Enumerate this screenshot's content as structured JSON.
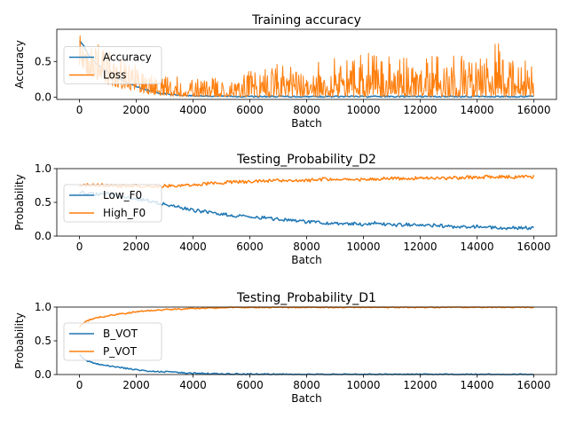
{
  "chart_data": [
    {
      "type": "line",
      "title": "Training accuracy",
      "xlabel": "Batch",
      "ylabel": "Accuracy",
      "xlim": [
        -800,
        16800
      ],
      "ylim": [
        -0.03,
        0.95
      ],
      "xticks": [
        0,
        2000,
        4000,
        6000,
        8000,
        10000,
        12000,
        14000,
        16000
      ],
      "yticks": [
        0.0,
        0.5
      ],
      "ytick_labels": [
        "0.0",
        "0.5"
      ],
      "legend": {
        "placement": "center-left",
        "entries": [
          "Accuracy",
          "Loss"
        ]
      },
      "series": [
        {
          "name": "Accuracy",
          "color": "#1f77b4",
          "x": [
            0,
            100,
            200,
            300,
            500,
            800,
            1200,
            1600,
            2000,
            2400,
            2800,
            3200,
            4000,
            6000,
            8000,
            10000,
            12000,
            14000,
            16000
          ],
          "y": [
            0.8,
            0.75,
            0.68,
            0.6,
            0.5,
            0.4,
            0.3,
            0.22,
            0.15,
            0.1,
            0.06,
            0.04,
            0.02,
            0.01,
            0.01,
            0.01,
            0.01,
            0.01,
            0.01
          ]
        },
        {
          "name": "Loss",
          "color": "#ff7f0e",
          "note_x_range": [
            0,
            16000
          ],
          "envelope": {
            "x": [
              0,
              200,
              600,
              1000,
              1500,
              2000,
              2500,
              3000,
              3500,
              4000,
              5000,
              5500,
              6000,
              7000,
              8000,
              9000,
              10000,
              10500,
              11000,
              12000,
              12500,
              13000,
              13500,
              14000,
              14700,
              15000,
              15500,
              16000
            ],
            "high": [
              0.9,
              0.85,
              0.75,
              0.65,
              0.55,
              0.45,
              0.35,
              0.3,
              0.3,
              0.25,
              0.28,
              0.38,
              0.45,
              0.48,
              0.5,
              0.55,
              0.6,
              0.75,
              0.6,
              0.55,
              0.6,
              0.55,
              0.65,
              0.6,
              0.8,
              0.55,
              0.6,
              0.4
            ],
            "low": [
              0.45,
              0.35,
              0.25,
              0.18,
              0.12,
              0.08,
              0.04,
              0.02,
              0.01,
              0.01,
              0.01,
              0.01,
              0.01,
              0.01,
              0.01,
              0.01,
              0.01,
              0.01,
              0.01,
              0.01,
              0.01,
              0.01,
              0.01,
              0.01,
              0.01,
              0.01,
              0.01,
              0.01
            ]
          }
        }
      ]
    },
    {
      "type": "line",
      "title": "Testing_Probability_D2",
      "xlabel": "Batch",
      "ylabel": "Probability",
      "xlim": [
        -800,
        16800
      ],
      "ylim": [
        0.0,
        1.0
      ],
      "xticks": [
        0,
        2000,
        4000,
        6000,
        8000,
        10000,
        12000,
        14000,
        16000
      ],
      "yticks": [
        0.0,
        0.5,
        1.0
      ],
      "ytick_labels": [
        "0.0",
        "0.5",
        "1.0"
      ],
      "legend": {
        "placement": "center-left",
        "entries": [
          "Low_F0",
          "High_F0"
        ]
      },
      "series": [
        {
          "name": "Low_F0",
          "color": "#1f77b4",
          "x": [
            0,
            500,
            1000,
            1500,
            2000,
            2500,
            3000,
            3500,
            4000,
            4500,
            5000,
            5500,
            6000,
            6500,
            7000,
            7500,
            8000,
            8500,
            9000,
            9500,
            10000,
            10500,
            11000,
            11500,
            12000,
            12500,
            13000,
            13500,
            14000,
            14500,
            15000,
            15500,
            16000
          ],
          "y": [
            0.65,
            0.62,
            0.63,
            0.58,
            0.55,
            0.52,
            0.47,
            0.43,
            0.38,
            0.36,
            0.33,
            0.3,
            0.29,
            0.27,
            0.25,
            0.23,
            0.21,
            0.2,
            0.19,
            0.19,
            0.17,
            0.2,
            0.16,
            0.17,
            0.15,
            0.16,
            0.14,
            0.13,
            0.14,
            0.13,
            0.12,
            0.12,
            0.12
          ]
        },
        {
          "name": "High_F0",
          "color": "#ff7f0e",
          "x": [
            0,
            500,
            1000,
            1500,
            2000,
            2500,
            3000,
            3500,
            4000,
            4500,
            5000,
            5500,
            6000,
            6500,
            7000,
            7500,
            8000,
            8500,
            9000,
            9500,
            10000,
            10500,
            11000,
            11500,
            12000,
            12500,
            13000,
            13500,
            14000,
            14500,
            15000,
            15500,
            16000
          ],
          "y": [
            0.75,
            0.76,
            0.75,
            0.74,
            0.74,
            0.73,
            0.74,
            0.75,
            0.76,
            0.78,
            0.79,
            0.81,
            0.8,
            0.82,
            0.82,
            0.83,
            0.82,
            0.84,
            0.85,
            0.83,
            0.84,
            0.85,
            0.86,
            0.84,
            0.87,
            0.85,
            0.86,
            0.87,
            0.87,
            0.88,
            0.88,
            0.87,
            0.88
          ]
        }
      ]
    },
    {
      "type": "line",
      "title": "Testing_Probability_D1",
      "xlabel": "Batch",
      "ylabel": "Probability",
      "xlim": [
        -800,
        16800
      ],
      "ylim": [
        0.0,
        1.0
      ],
      "xticks": [
        0,
        2000,
        4000,
        6000,
        8000,
        10000,
        12000,
        14000,
        16000
      ],
      "yticks": [
        0.0,
        0.5,
        1.0
      ],
      "ytick_labels": [
        "0.0",
        "0.5",
        "1.0"
      ],
      "legend": {
        "placement": "center-left",
        "entries": [
          "B_VOT",
          "P_VOT"
        ]
      },
      "series": [
        {
          "name": "B_VOT",
          "color": "#1f77b4",
          "x": [
            0,
            100,
            200,
            400,
            700,
            1000,
            1500,
            2000,
            2500,
            3000,
            3500,
            4000,
            5000,
            6000,
            8000,
            10000,
            12000,
            14000,
            16000
          ],
          "y": [
            0.3,
            0.25,
            0.22,
            0.18,
            0.15,
            0.13,
            0.1,
            0.07,
            0.05,
            0.04,
            0.03,
            0.02,
            0.01,
            0.005,
            0.003,
            0.002,
            0.001,
            0.001,
            0.001
          ]
        },
        {
          "name": "P_VOT",
          "color": "#ff7f0e",
          "x": [
            0,
            100,
            200,
            400,
            700,
            1000,
            1500,
            2000,
            2500,
            3000,
            3500,
            4000,
            5000,
            6000,
            8000,
            10000,
            12000,
            14000,
            16000
          ],
          "y": [
            0.7,
            0.75,
            0.78,
            0.82,
            0.85,
            0.87,
            0.9,
            0.93,
            0.95,
            0.96,
            0.97,
            0.98,
            0.99,
            0.995,
            0.997,
            0.998,
            0.999,
            0.999,
            0.999
          ]
        }
      ]
    }
  ]
}
